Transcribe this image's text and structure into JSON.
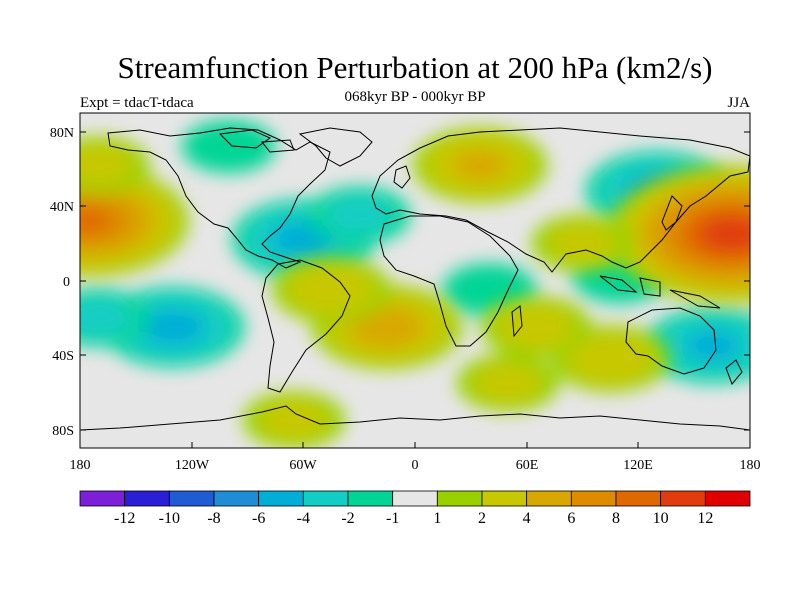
{
  "title": "Streamfunction Perturbation at 200 hPa (km2/s)",
  "subtitle": "068kyr BP - 000kyr BP",
  "left_label": "Expt = tdacT-tdaca",
  "right_label": "JJA",
  "y_ticks": [
    "80N",
    "40N",
    "0",
    "40S",
    "80S"
  ],
  "x_ticks": [
    "180",
    "120W",
    "60W",
    "0",
    "60E",
    "120E",
    "180"
  ],
  "colorbar": {
    "colors": [
      "#7c1fd8",
      "#2a1fd6",
      "#1f5cd4",
      "#1f8cd6",
      "#00aed6",
      "#12cdc4",
      "#00d596",
      "#e6e6e6",
      "#99d100",
      "#c8c800",
      "#d8a800",
      "#dd8c00",
      "#e06800",
      "#e03c0e",
      "#e00000"
    ],
    "labels": [
      "-12",
      "-10",
      "-8",
      "-6",
      "-4",
      "-2",
      "-1",
      "1",
      "2",
      "4",
      "6",
      "8",
      "10",
      "12"
    ]
  },
  "field": {
    "negative": [
      {
        "lon": -100,
        "lat": 72,
        "amp": 1.5
      },
      {
        "lon": -60,
        "lat": 22,
        "amp": 4.5
      },
      {
        "lon": -30,
        "lat": 35,
        "amp": 2.0
      },
      {
        "lon": -130,
        "lat": -25,
        "amp": 4.5
      },
      {
        "lon": -170,
        "lat": -20,
        "amp": 2.0
      },
      {
        "lon": 130,
        "lat": 48,
        "amp": 4.5
      },
      {
        "lon": 160,
        "lat": -35,
        "amp": 4.0
      },
      {
        "lon": 40,
        "lat": -5,
        "amp": 1.5
      },
      {
        "lon": 110,
        "lat": 2,
        "amp": 1.5
      }
    ],
    "positive": [
      {
        "lon": 35,
        "lat": 62,
        "amp": 4.0
      },
      {
        "lon": 170,
        "lat": 25,
        "amp": 11.0
      },
      {
        "lon": -175,
        "lat": 32,
        "amp": 8.0
      },
      {
        "lon": -15,
        "lat": -25,
        "amp": 5.0
      },
      {
        "lon": -45,
        "lat": -5,
        "amp": 3.0
      },
      {
        "lon": 105,
        "lat": -42,
        "amp": 3.0
      },
      {
        "lon": 65,
        "lat": -25,
        "amp": 2.5
      },
      {
        "lon": 50,
        "lat": -55,
        "amp": 2.0
      },
      {
        "lon": -170,
        "lat": 62,
        "amp": 2.0
      },
      {
        "lon": 90,
        "lat": 20,
        "amp": 2.0
      },
      {
        "lon": -65,
        "lat": -75,
        "amp": 2.0
      }
    ]
  }
}
